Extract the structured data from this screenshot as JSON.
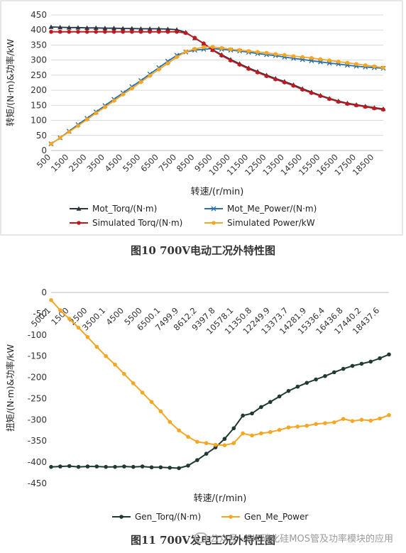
{
  "chart_data": [
    {
      "type": "line",
      "ylabel": "转矩/(N·m)&功率/kW",
      "xlabel": "转速/(r/min)",
      "ylim": [
        0,
        450
      ],
      "yticks": [
        0,
        50,
        100,
        150,
        200,
        250,
        300,
        350,
        400,
        450
      ],
      "grid": true,
      "legend_position": "bottom",
      "x_tick_labels": [
        "500",
        "1500",
        "2500",
        "3500",
        "4500",
        "5500",
        "6500",
        "7500",
        "8500",
        "9500",
        "10500",
        "11500",
        "12500",
        "13500",
        "14500",
        "15500",
        "16500",
        "17500",
        "18500"
      ],
      "x": [
        500,
        1000,
        1500,
        2000,
        2500,
        3000,
        3500,
        4000,
        4500,
        5000,
        5500,
        6000,
        6500,
        7000,
        7500,
        8000,
        8500,
        9000,
        9500,
        10000,
        10500,
        11000,
        11500,
        12000,
        12500,
        13000,
        13500,
        14000,
        14500,
        15000,
        15500,
        16000,
        16500,
        17000,
        17500,
        18000,
        18500,
        19000
      ],
      "series": [
        {
          "name": "Mot_Torq/(N·m)",
          "color": "#2b3540",
          "marker": "triangle",
          "values": [
            410,
            409,
            408,
            408,
            407,
            407,
            406,
            406,
            405,
            405,
            404,
            404,
            404,
            403,
            401,
            392,
            373,
            355,
            334,
            318,
            302,
            288,
            274,
            262,
            250,
            239,
            229,
            218,
            205,
            194,
            183,
            173,
            164,
            157,
            152,
            147,
            142,
            138
          ]
        },
        {
          "name": "Mot_Me_Power/(N·m)",
          "color": "#2a6fa8",
          "marker": "x",
          "values": [
            22,
            42,
            64,
            86,
            107,
            128,
            149,
            170,
            191,
            212,
            232,
            254,
            275,
            296,
            316,
            327,
            333,
            336,
            338,
            336,
            333,
            330,
            326,
            322,
            318,
            315,
            310,
            306,
            302,
            298,
            294,
            290,
            287,
            283,
            280,
            277,
            275,
            273
          ]
        },
        {
          "name": "Simulated Torq/(N·m)",
          "color": "#c0181f",
          "marker": "circle",
          "values": [
            394,
            394,
            394,
            394,
            394,
            394,
            394,
            394,
            394,
            394,
            394,
            394,
            394,
            394,
            394,
            390,
            374,
            355,
            333,
            315,
            299,
            285,
            271,
            259,
            247,
            236,
            226,
            215,
            202,
            191,
            181,
            171,
            162,
            155,
            150,
            145,
            140,
            136
          ]
        },
        {
          "name": "Simulated Power/kW",
          "color": "#f5a623",
          "marker": "circle",
          "values": [
            22,
            42,
            62,
            82,
            103,
            124,
            144,
            165,
            186,
            206,
            227,
            248,
            269,
            289,
            310,
            328,
            337,
            343,
            344,
            340,
            336,
            333,
            330,
            327,
            324,
            320,
            317,
            313,
            310,
            307,
            303,
            299,
            295,
            291,
            287,
            283,
            279,
            275
          ]
        }
      ]
    },
    {
      "type": "line",
      "ylabel": "扭矩/(N·m)&功率/kW",
      "xlabel": "转速/(r/min)",
      "ylim": [
        -450,
        0
      ],
      "yticks": [
        0,
        -50,
        -100,
        -150,
        -200,
        -250,
        -300,
        -350,
        -400,
        -450
      ],
      "grid": false,
      "legend_position": "bottom",
      "x_tick_labels": [
        "500.1",
        "1500",
        "2500",
        "3500.1",
        "4500",
        "5500",
        "6500.1",
        "7499.9",
        "8612.2",
        "9397.8",
        "10578.1",
        "11350.8",
        "12249.9",
        "13373.7",
        "14281.9",
        "15336.4",
        "16436.8",
        "17440.2",
        "18437.6"
      ],
      "x": [
        500,
        1000,
        1500,
        2000,
        2500,
        3000,
        3500,
        4000,
        4500,
        5000,
        5500,
        6000,
        6500,
        7000,
        7500,
        8000,
        8500,
        9000,
        9500,
        10000,
        10500,
        11000,
        11500,
        12000,
        12500,
        13000,
        13500,
        14000,
        14500,
        15000,
        15500,
        16000,
        16500,
        17000,
        17500,
        18000,
        18500,
        19000
      ],
      "series": [
        {
          "name": "Gen_Torq/(N·m)",
          "color": "#1f3a32",
          "marker": "circle",
          "values": [
            -411,
            -410,
            -409,
            -411,
            -410,
            -410,
            -411,
            -411,
            -410,
            -411,
            -410,
            -412,
            -412,
            -413,
            -414,
            -408,
            -395,
            -380,
            -365,
            -345,
            -320,
            -290,
            -285,
            -270,
            -258,
            -245,
            -232,
            -222,
            -213,
            -205,
            -197,
            -188,
            -180,
            -173,
            -168,
            -163,
            -155,
            -146
          ]
        },
        {
          "name": "Gen_Me_Power",
          "color": "#f5a623",
          "marker": "circle",
          "values": [
            -18,
            -42,
            -62,
            -83,
            -105,
            -128,
            -150,
            -170,
            -192,
            -214,
            -236,
            -258,
            -280,
            -305,
            -325,
            -340,
            -352,
            -355,
            -359,
            -360,
            -355,
            -332,
            -337,
            -332,
            -329,
            -324,
            -318,
            -316,
            -314,
            -310,
            -308,
            -306,
            -298,
            -303,
            -300,
            -302,
            -297,
            -289
          ]
        }
      ]
    }
  ],
  "captions": {
    "fig10": "图10    700V电动工况外特性图",
    "fig11": "图11    700V发电工况外特性图"
  },
  "watermark": {
    "text": "公众号 · SIC碳化硅MOS管及功率模块的应用",
    "icon": "wechat-icon"
  }
}
